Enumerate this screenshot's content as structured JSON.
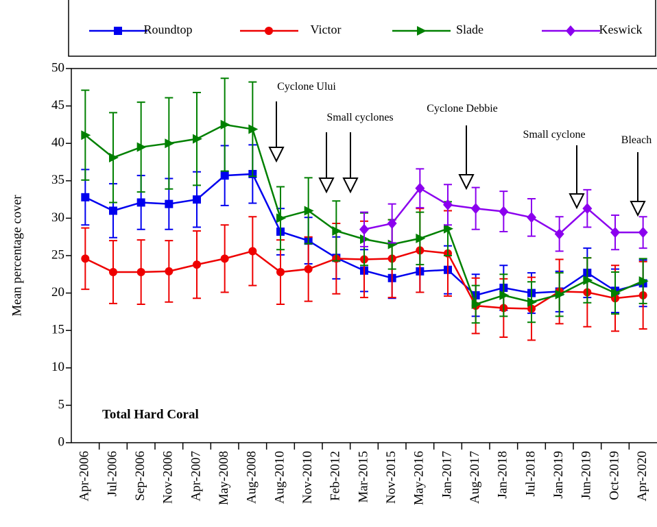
{
  "chart_data": {
    "type": "line",
    "ylabel": "Mean percentage cover",
    "inset_label": "Total Hard Coral",
    "categories": [
      "Apr-2006",
      "Jul-2006",
      "Sep-2006",
      "Nov-2006",
      "Apr-2007",
      "May-2008",
      "Aug-2008",
      "Aug-2010",
      "Nov-2010",
      "Feb-2012",
      "Mar-2015",
      "Nov-2015",
      "May-2016",
      "Jan-2017",
      "Aug-2017",
      "Jan-2018",
      "Jul-2018",
      "Jan-2019",
      "Jun-2019",
      "Oct-2019",
      "Apr-2020"
    ],
    "series": [
      {
        "name": "Roundtop",
        "color": "#0000ee",
        "marker": "square",
        "values": [
          32.8,
          31.0,
          32.1,
          31.9,
          32.5,
          35.7,
          35.9,
          28.2,
          27.0,
          24.7,
          23.0,
          22.0,
          22.9,
          23.1,
          19.7,
          20.7,
          20.0,
          20.2,
          22.7,
          20.3,
          21.3
        ],
        "errors": [
          3.7,
          3.6,
          3.6,
          3.4,
          3.7,
          4.0,
          3.9,
          3.1,
          3.1,
          2.8,
          2.8,
          2.7,
          2.8,
          3.2,
          2.8,
          3.0,
          2.7,
          2.7,
          3.3,
          2.9,
          3.1
        ]
      },
      {
        "name": "Victor",
        "color": "#ee0000",
        "marker": "circle",
        "values": [
          24.6,
          22.8,
          22.8,
          22.9,
          23.8,
          24.6,
          25.6,
          22.8,
          23.2,
          24.6,
          24.5,
          24.6,
          25.7,
          25.3,
          18.3,
          18.0,
          17.9,
          20.2,
          20.1,
          19.3,
          19.7
        ],
        "errors": [
          4.1,
          4.2,
          4.3,
          4.1,
          4.5,
          4.5,
          4.6,
          4.3,
          4.3,
          4.7,
          5.1,
          5.2,
          5.6,
          5.7,
          3.7,
          3.9,
          4.2,
          4.3,
          4.6,
          4.4,
          4.5
        ]
      },
      {
        "name": "Slade",
        "color": "#008000",
        "marker": "triangle",
        "values": [
          41.1,
          38.1,
          39.5,
          40.0,
          40.6,
          42.5,
          41.9,
          30.0,
          31.0,
          28.3,
          27.2,
          26.5,
          27.3,
          28.6,
          18.5,
          19.7,
          18.8,
          19.8,
          21.7,
          20.0,
          21.6
        ],
        "errors": [
          6.0,
          6.0,
          6.0,
          6.1,
          6.2,
          6.2,
          6.3,
          4.2,
          4.4,
          4.0,
          3.5,
          3.3,
          3.5,
          3.6,
          2.5,
          2.8,
          2.7,
          2.9,
          3.0,
          2.8,
          3.0
        ]
      },
      {
        "name": "Keswick",
        "color": "#8b00ee",
        "marker": "diamond",
        "values": [
          null,
          null,
          null,
          null,
          null,
          null,
          null,
          null,
          null,
          null,
          28.5,
          29.3,
          34.0,
          31.8,
          31.3,
          30.9,
          30.1,
          27.9,
          31.3,
          28.1,
          28.1
        ],
        "errors": [
          null,
          null,
          null,
          null,
          null,
          null,
          null,
          null,
          null,
          null,
          2.3,
          2.6,
          2.6,
          2.7,
          2.8,
          2.7,
          2.5,
          2.3,
          2.5,
          2.3,
          2.1
        ]
      }
    ],
    "ylim": [
      0,
      50
    ],
    "yticks": [
      0,
      5,
      10,
      15,
      20,
      25,
      30,
      35,
      40,
      45,
      50
    ],
    "annotations": [
      "Cyclone Ului",
      "Small cyclones",
      "Cyclone Debbie",
      "Small cyclone",
      "Bleach"
    ],
    "legend": "top"
  }
}
